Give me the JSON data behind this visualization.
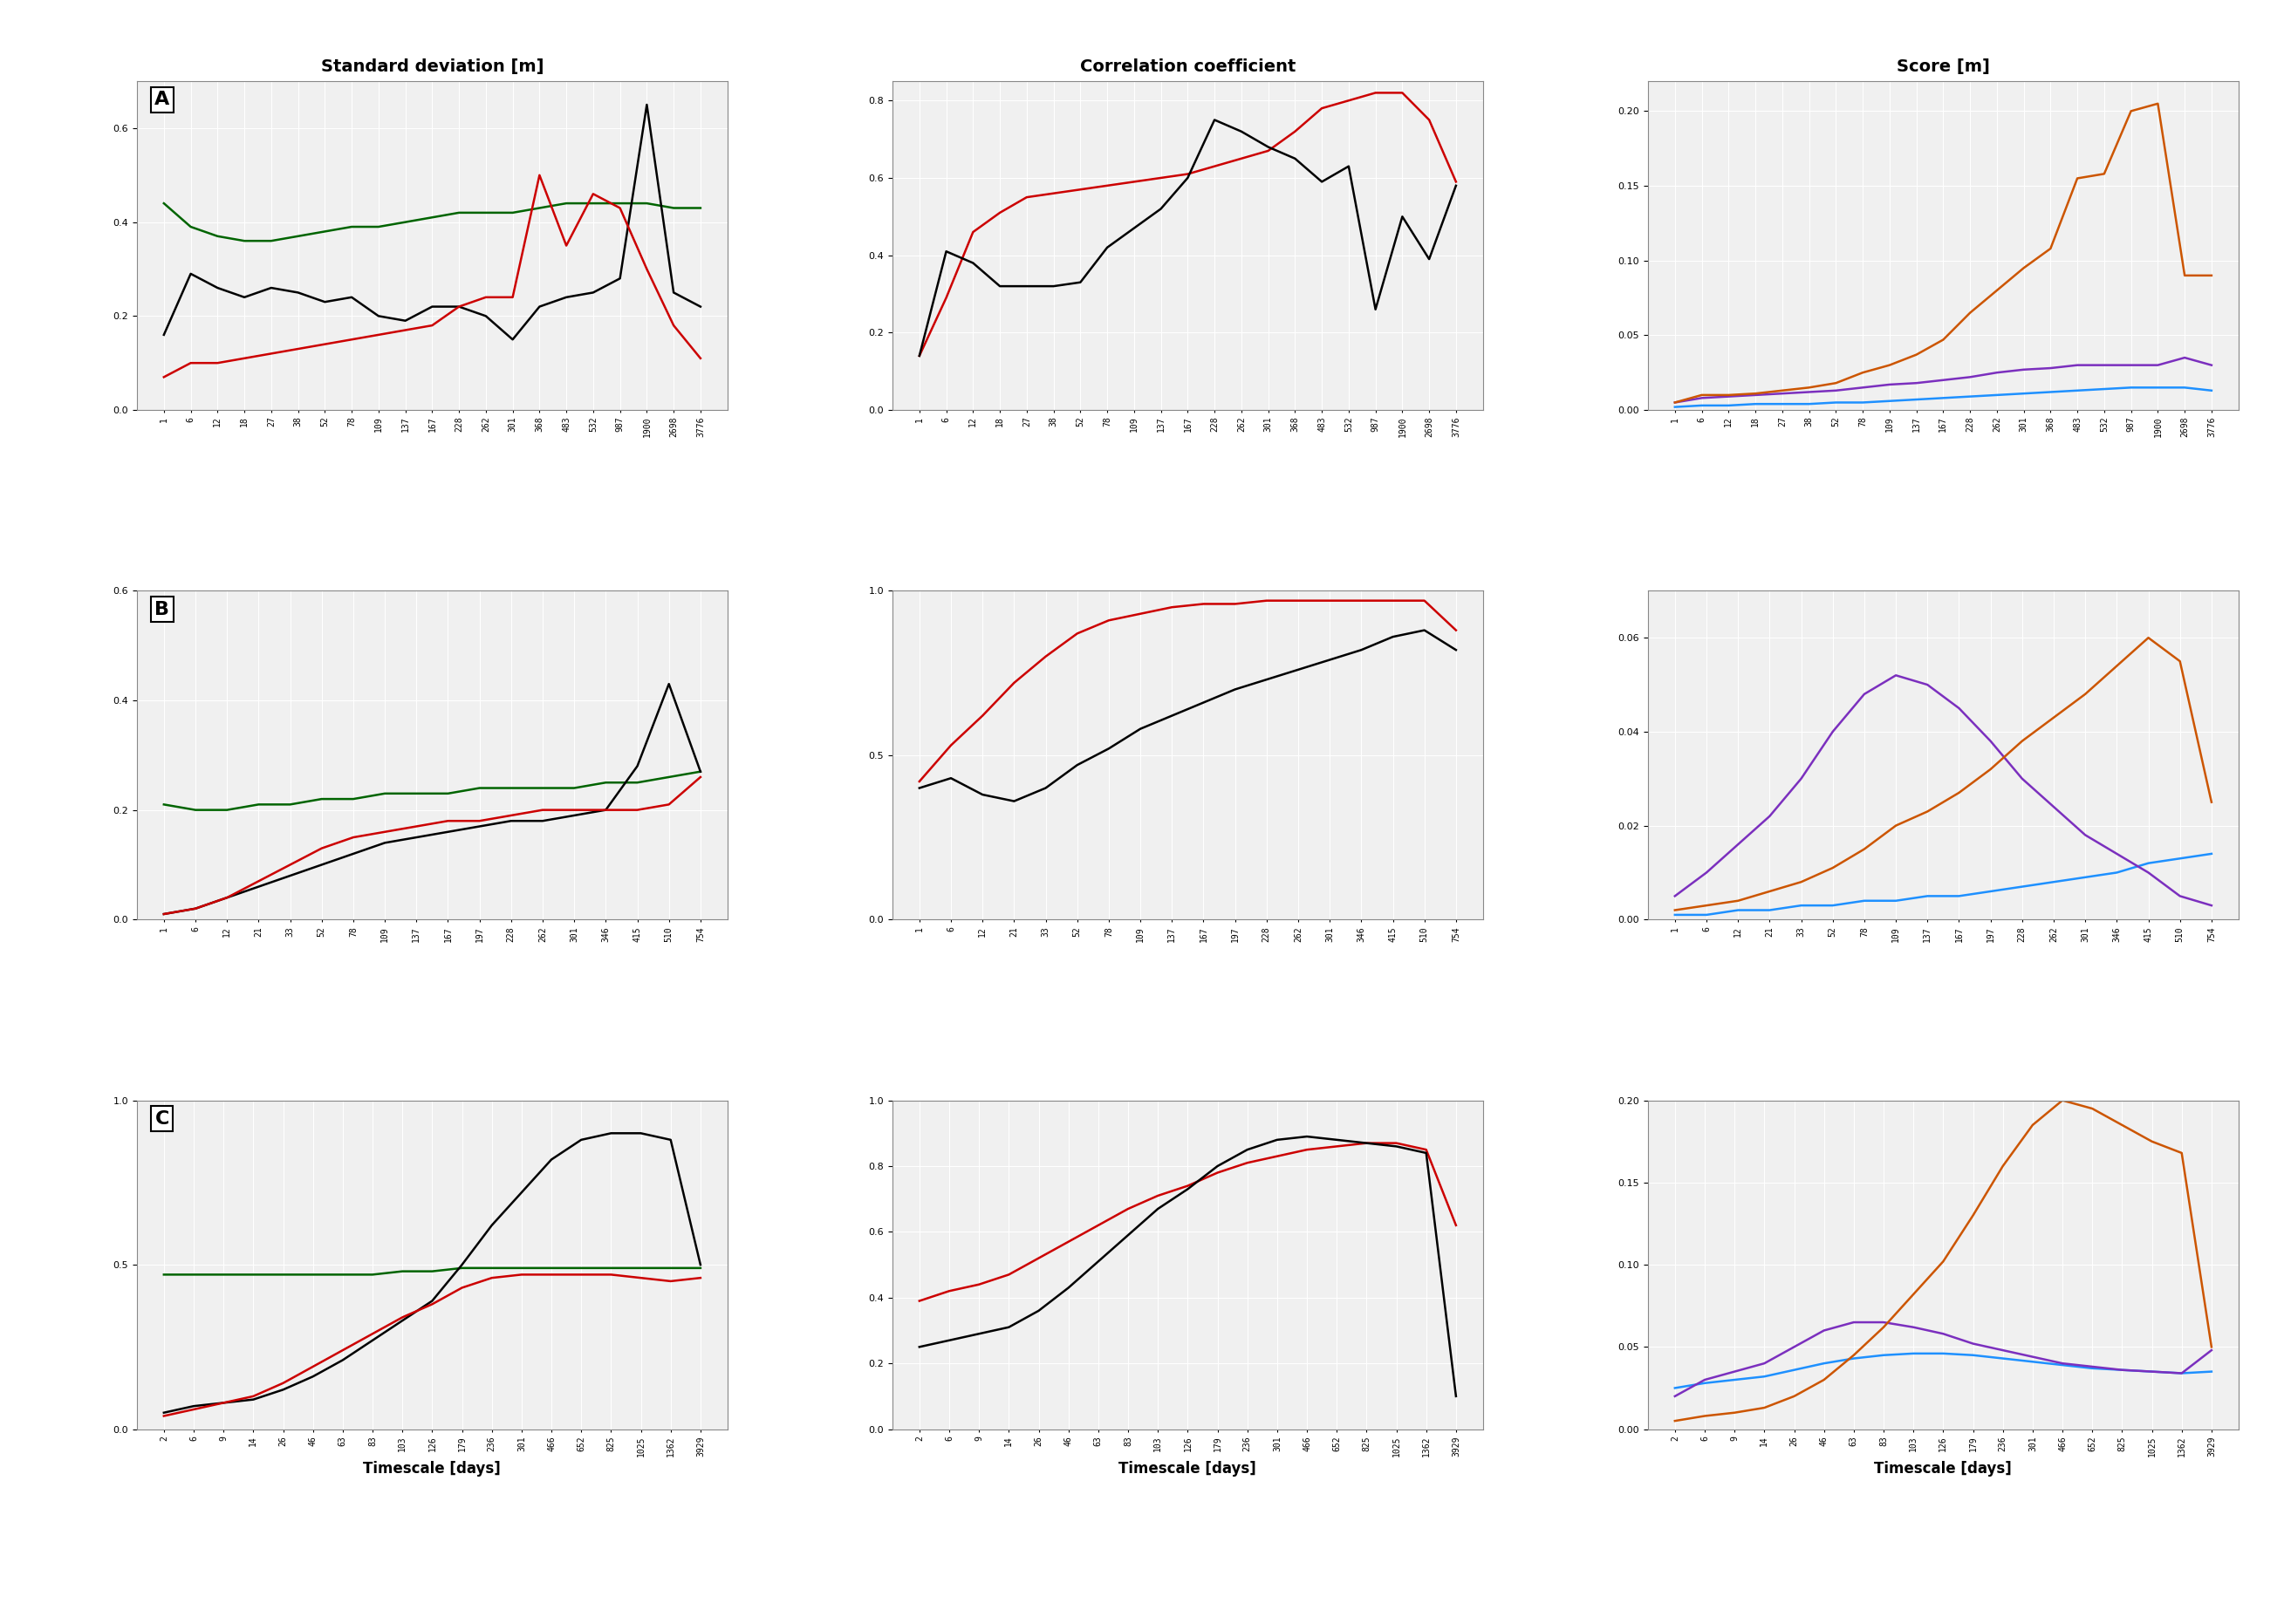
{
  "title_col1": "Standard deviation [m]",
  "title_col2": "Correlation coefficient",
  "title_col3": "Score [m]",
  "xlabel": "Timescale [days]",
  "row_labels": [
    "A",
    "B",
    "C"
  ],
  "row_A_xticks": [
    1,
    6,
    12,
    18,
    27,
    38,
    52,
    78,
    109,
    137,
    167,
    228,
    262,
    301,
    368,
    483,
    532,
    987,
    1900,
    2698,
    3776
  ],
  "row_B_xticks": [
    1,
    6,
    12,
    21,
    33,
    52,
    78,
    109,
    137,
    167,
    197,
    228,
    262,
    301,
    346,
    415,
    510,
    754
  ],
  "row_C_xticks": [
    2,
    6,
    9,
    14,
    26,
    46,
    63,
    83,
    103,
    126,
    179,
    236,
    301,
    466,
    652,
    825,
    1025,
    1362,
    3929
  ],
  "A_std_black": [
    0.16,
    0.29,
    0.26,
    0.24,
    0.26,
    0.25,
    0.23,
    0.24,
    0.2,
    0.19,
    0.22,
    0.22,
    0.2,
    0.15,
    0.22,
    0.24,
    0.25,
    0.28,
    0.65,
    0.25,
    0.22
  ],
  "A_std_red": [
    0.07,
    0.1,
    0.1,
    0.11,
    0.12,
    0.13,
    0.14,
    0.15,
    0.16,
    0.17,
    0.18,
    0.22,
    0.24,
    0.24,
    0.5,
    0.35,
    0.46,
    0.43,
    0.3,
    0.18,
    0.11
  ],
  "A_std_green": [
    0.44,
    0.39,
    0.37,
    0.36,
    0.36,
    0.37,
    0.38,
    0.39,
    0.39,
    0.4,
    0.41,
    0.42,
    0.42,
    0.42,
    0.43,
    0.44,
    0.44,
    0.44,
    0.44,
    0.43,
    0.43
  ],
  "A_corr_black": [
    0.14,
    0.41,
    0.38,
    0.32,
    0.32,
    0.32,
    0.33,
    0.42,
    0.47,
    0.52,
    0.6,
    0.75,
    0.72,
    0.68,
    0.65,
    0.59,
    0.63,
    0.26,
    0.5,
    0.39,
    0.58
  ],
  "A_corr_red": [
    0.14,
    0.29,
    0.46,
    0.51,
    0.55,
    0.56,
    0.57,
    0.58,
    0.59,
    0.6,
    0.61,
    0.63,
    0.65,
    0.67,
    0.72,
    0.78,
    0.8,
    0.82,
    0.82,
    0.75,
    0.59
  ],
  "A_score_orange": [
    0.005,
    0.01,
    0.01,
    0.011,
    0.013,
    0.015,
    0.018,
    0.025,
    0.03,
    0.037,
    0.047,
    0.065,
    0.08,
    0.095,
    0.108,
    0.155,
    0.158,
    0.2,
    0.205,
    0.09,
    0.09
  ],
  "A_score_purple": [
    0.005,
    0.008,
    0.009,
    0.01,
    0.011,
    0.012,
    0.013,
    0.015,
    0.017,
    0.018,
    0.02,
    0.022,
    0.025,
    0.027,
    0.028,
    0.03,
    0.03,
    0.03,
    0.03,
    0.035,
    0.03
  ],
  "A_score_blue": [
    0.002,
    0.003,
    0.003,
    0.004,
    0.004,
    0.004,
    0.005,
    0.005,
    0.006,
    0.007,
    0.008,
    0.009,
    0.01,
    0.011,
    0.012,
    0.013,
    0.014,
    0.015,
    0.015,
    0.015,
    0.013
  ],
  "B_std_black": [
    0.01,
    0.02,
    0.04,
    0.06,
    0.08,
    0.1,
    0.12,
    0.14,
    0.15,
    0.16,
    0.17,
    0.18,
    0.18,
    0.19,
    0.2,
    0.28,
    0.43,
    0.27
  ],
  "B_std_red": [
    0.01,
    0.02,
    0.04,
    0.07,
    0.1,
    0.13,
    0.15,
    0.16,
    0.17,
    0.18,
    0.18,
    0.19,
    0.2,
    0.2,
    0.2,
    0.2,
    0.21,
    0.26
  ],
  "B_std_green": [
    0.21,
    0.2,
    0.2,
    0.21,
    0.21,
    0.22,
    0.22,
    0.23,
    0.23,
    0.23,
    0.24,
    0.24,
    0.24,
    0.24,
    0.25,
    0.25,
    0.26,
    0.27
  ],
  "B_corr_black": [
    0.4,
    0.43,
    0.38,
    0.36,
    0.4,
    0.47,
    0.52,
    0.58,
    0.62,
    0.66,
    0.7,
    0.73,
    0.76,
    0.79,
    0.82,
    0.86,
    0.88,
    0.82
  ],
  "B_corr_red": [
    0.42,
    0.53,
    0.62,
    0.72,
    0.8,
    0.87,
    0.91,
    0.93,
    0.95,
    0.96,
    0.96,
    0.97,
    0.97,
    0.97,
    0.97,
    0.97,
    0.97,
    0.88
  ],
  "B_score_orange": [
    0.002,
    0.003,
    0.004,
    0.006,
    0.008,
    0.011,
    0.015,
    0.02,
    0.023,
    0.027,
    0.032,
    0.038,
    0.043,
    0.048,
    0.054,
    0.06,
    0.055,
    0.025
  ],
  "B_score_purple": [
    0.005,
    0.01,
    0.016,
    0.022,
    0.03,
    0.04,
    0.048,
    0.052,
    0.05,
    0.045,
    0.038,
    0.03,
    0.024,
    0.018,
    0.014,
    0.01,
    0.005,
    0.003
  ],
  "B_score_blue": [
    0.001,
    0.001,
    0.002,
    0.002,
    0.003,
    0.003,
    0.004,
    0.004,
    0.005,
    0.005,
    0.006,
    0.007,
    0.008,
    0.009,
    0.01,
    0.012,
    0.013,
    0.014
  ],
  "C_std_black": [
    0.05,
    0.07,
    0.08,
    0.09,
    0.12,
    0.16,
    0.21,
    0.27,
    0.33,
    0.39,
    0.5,
    0.62,
    0.72,
    0.82,
    0.88,
    0.9,
    0.9,
    0.88,
    0.5
  ],
  "C_std_red": [
    0.04,
    0.06,
    0.08,
    0.1,
    0.14,
    0.19,
    0.24,
    0.29,
    0.34,
    0.38,
    0.43,
    0.46,
    0.47,
    0.47,
    0.47,
    0.47,
    0.46,
    0.45,
    0.46
  ],
  "C_std_green": [
    0.47,
    0.47,
    0.47,
    0.47,
    0.47,
    0.47,
    0.47,
    0.47,
    0.48,
    0.48,
    0.49,
    0.49,
    0.49,
    0.49,
    0.49,
    0.49,
    0.49,
    0.49,
    0.49
  ],
  "C_corr_black": [
    0.25,
    0.27,
    0.29,
    0.31,
    0.36,
    0.43,
    0.51,
    0.59,
    0.67,
    0.73,
    0.8,
    0.85,
    0.88,
    0.89,
    0.88,
    0.87,
    0.86,
    0.84,
    0.1
  ],
  "C_corr_red": [
    0.39,
    0.42,
    0.44,
    0.47,
    0.52,
    0.57,
    0.62,
    0.67,
    0.71,
    0.74,
    0.78,
    0.81,
    0.83,
    0.85,
    0.86,
    0.87,
    0.87,
    0.85,
    0.62
  ],
  "C_score_orange": [
    0.005,
    0.008,
    0.01,
    0.013,
    0.02,
    0.03,
    0.045,
    0.062,
    0.082,
    0.102,
    0.13,
    0.16,
    0.185,
    0.2,
    0.195,
    0.185,
    0.175,
    0.168,
    0.05
  ],
  "C_score_purple": [
    0.02,
    0.03,
    0.035,
    0.04,
    0.05,
    0.06,
    0.065,
    0.065,
    0.062,
    0.058,
    0.052,
    0.048,
    0.044,
    0.04,
    0.038,
    0.036,
    0.035,
    0.034,
    0.048
  ],
  "C_score_blue": [
    0.025,
    0.028,
    0.03,
    0.032,
    0.036,
    0.04,
    0.043,
    0.045,
    0.046,
    0.046,
    0.045,
    0.043,
    0.041,
    0.039,
    0.037,
    0.036,
    0.035,
    0.034,
    0.035
  ],
  "A_std_ylim": [
    0,
    0.7
  ],
  "A_corr_ylim": [
    0,
    0.85
  ],
  "A_score_ylim": [
    0,
    0.22
  ],
  "B_std_ylim": [
    0,
    0.6
  ],
  "B_corr_ylim": [
    0,
    1.0
  ],
  "B_score_ylim": [
    0,
    0.07
  ],
  "C_std_ylim": [
    0,
    1.0
  ],
  "C_corr_ylim": [
    0,
    1.0
  ],
  "C_score_ylim": [
    0,
    0.2
  ],
  "A_std_yticks": [
    0,
    0.2,
    0.4,
    0.6
  ],
  "A_corr_yticks": [
    0,
    0.2,
    0.4,
    0.6,
    0.8
  ],
  "A_score_yticks": [
    0,
    0.05,
    0.1,
    0.15,
    0.2
  ],
  "B_std_yticks": [
    0,
    0.2,
    0.4,
    0.6
  ],
  "B_corr_yticks": [
    0,
    0.5,
    1.0
  ],
  "B_score_yticks": [
    0,
    0.02,
    0.04,
    0.06
  ],
  "C_std_yticks": [
    0,
    0.5,
    1.0
  ],
  "C_corr_yticks": [
    0,
    0.2,
    0.4,
    0.6,
    0.8,
    1.0
  ],
  "C_score_yticks": [
    0,
    0.05,
    0.1,
    0.15,
    0.2
  ],
  "color_black": "#000000",
  "color_red": "#cc0000",
  "color_green": "#006400",
  "color_orange": "#cc5500",
  "color_purple": "#7b2fbe",
  "color_blue": "#1e90ff",
  "bg_color": "#f0f0f0",
  "grid_color": "#ffffff",
  "linewidth": 1.8,
  "title_fontsize": 14,
  "tick_fontsize": 7,
  "label_fontsize": 12,
  "rowlabel_fontsize": 16
}
